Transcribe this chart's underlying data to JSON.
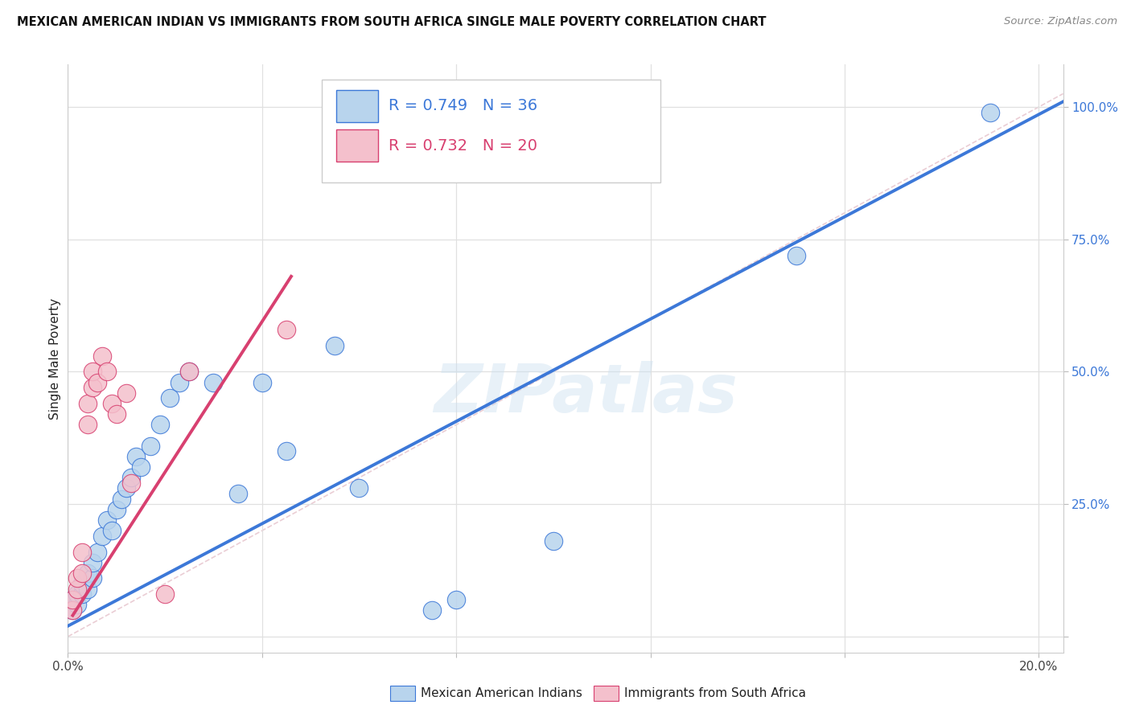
{
  "title": "MEXICAN AMERICAN INDIAN VS IMMIGRANTS FROM SOUTH AFRICA SINGLE MALE POVERTY CORRELATION CHART",
  "source": "Source: ZipAtlas.com",
  "ylabel": "Single Male Poverty",
  "xmin": 0.0,
  "xmax": 0.205,
  "ymin": -0.03,
  "ymax": 1.08,
  "blue_R": 0.749,
  "blue_N": 36,
  "pink_R": 0.732,
  "pink_N": 20,
  "blue_fill": "#b8d4ed",
  "blue_line": "#3c78d8",
  "pink_fill": "#f4c0cc",
  "pink_line": "#d84070",
  "diag_color": "#cccccc",
  "watermark": "ZIPatlas",
  "label_blue": "Mexican American Indians",
  "label_pink": "Immigrants from South Africa",
  "blue_points": [
    [
      0.001,
      0.05
    ],
    [
      0.001,
      0.07
    ],
    [
      0.002,
      0.06
    ],
    [
      0.002,
      0.08
    ],
    [
      0.003,
      0.08
    ],
    [
      0.003,
      0.1
    ],
    [
      0.004,
      0.09
    ],
    [
      0.004,
      0.12
    ],
    [
      0.005,
      0.11
    ],
    [
      0.005,
      0.14
    ],
    [
      0.006,
      0.16
    ],
    [
      0.007,
      0.19
    ],
    [
      0.008,
      0.22
    ],
    [
      0.009,
      0.2
    ],
    [
      0.01,
      0.24
    ],
    [
      0.011,
      0.26
    ],
    [
      0.012,
      0.28
    ],
    [
      0.013,
      0.3
    ],
    [
      0.014,
      0.34
    ],
    [
      0.015,
      0.32
    ],
    [
      0.017,
      0.36
    ],
    [
      0.019,
      0.4
    ],
    [
      0.021,
      0.45
    ],
    [
      0.023,
      0.48
    ],
    [
      0.025,
      0.5
    ],
    [
      0.03,
      0.48
    ],
    [
      0.035,
      0.27
    ],
    [
      0.04,
      0.48
    ],
    [
      0.045,
      0.35
    ],
    [
      0.055,
      0.55
    ],
    [
      0.06,
      0.28
    ],
    [
      0.075,
      0.05
    ],
    [
      0.08,
      0.07
    ],
    [
      0.1,
      0.18
    ],
    [
      0.15,
      0.72
    ],
    [
      0.19,
      0.99
    ]
  ],
  "pink_points": [
    [
      0.001,
      0.05
    ],
    [
      0.001,
      0.07
    ],
    [
      0.002,
      0.09
    ],
    [
      0.002,
      0.11
    ],
    [
      0.003,
      0.12
    ],
    [
      0.003,
      0.16
    ],
    [
      0.004,
      0.4
    ],
    [
      0.004,
      0.44
    ],
    [
      0.005,
      0.47
    ],
    [
      0.005,
      0.5
    ],
    [
      0.006,
      0.48
    ],
    [
      0.007,
      0.53
    ],
    [
      0.008,
      0.5
    ],
    [
      0.009,
      0.44
    ],
    [
      0.01,
      0.42
    ],
    [
      0.012,
      0.46
    ],
    [
      0.013,
      0.29
    ],
    [
      0.02,
      0.08
    ],
    [
      0.025,
      0.5
    ],
    [
      0.045,
      0.58
    ]
  ],
  "blue_line_x": [
    0.0,
    0.205
  ],
  "blue_line_y": [
    0.02,
    1.01
  ],
  "pink_line_x": [
    0.001,
    0.046
  ],
  "pink_line_y": [
    0.04,
    0.68
  ]
}
